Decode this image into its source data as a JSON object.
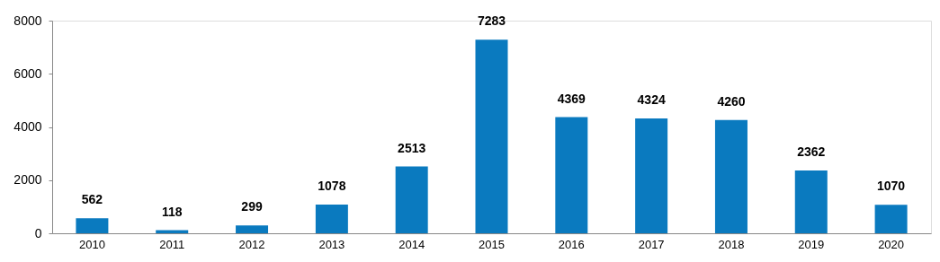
{
  "chart_data": {
    "type": "bar",
    "categories": [
      "2010",
      "2011",
      "2012",
      "2013",
      "2014",
      "2015",
      "2016",
      "2017",
      "2018",
      "2019",
      "2020"
    ],
    "values": [
      562,
      118,
      299,
      1078,
      2513,
      7283,
      4369,
      4324,
      4260,
      2362,
      1070
    ],
    "color": "#0a7abf",
    "ylim": [
      0,
      8000
    ],
    "yticks": [
      0,
      2000,
      4000,
      6000,
      8000
    ],
    "grid": false,
    "data_labels": true
  }
}
